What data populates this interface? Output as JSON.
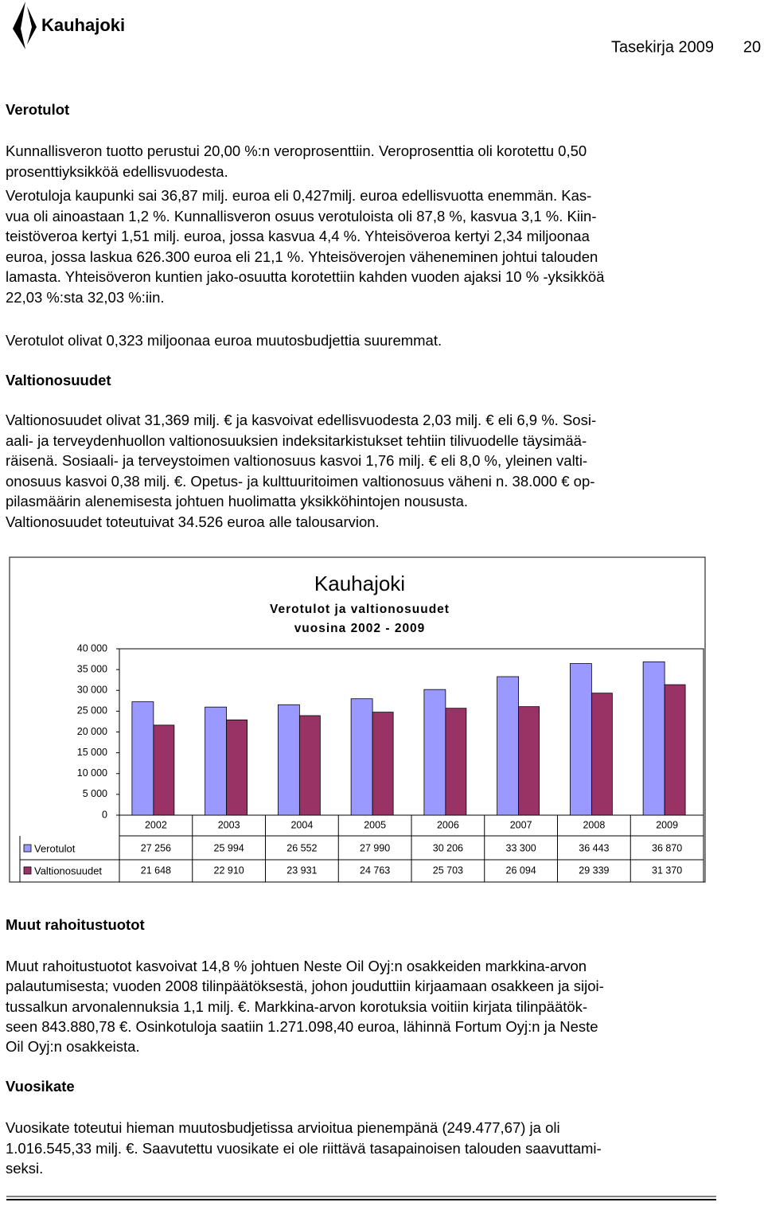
{
  "header": {
    "logo_text": "Kauhajoki",
    "title": "Tasekirja 2009",
    "page": "20"
  },
  "sections": [
    {
      "heading": "Verotulot",
      "paragraphs": [
        [
          "Kunnallisveron tuotto perustui 20,00 %:n veroprosenttiin. Veroprosenttia oli korotettu 0,50",
          "prosenttiyksikköä edellisvuodesta."
        ],
        [
          "Verotuloja kaupunki sai 36,87 milj. euroa eli 0,427milj. euroa edellisvuotta enemmän. Kas-",
          "vua oli ainoastaan 1,2 %. Kunnallisveron osuus verotuloista oli 87,8 %, kasvua 3,1 %. Kiin-",
          "teistöveroa kertyi 1,51 milj. euroa, jossa kasvua 4,4 %. Yhteisöveroa kertyi 2,34 miljoonaa",
          "euroa, jossa laskua 626.300 euroa eli 21,1 %. Yhteisöverojen väheneminen johtui talouden",
          "lamasta. Yhteisöveron kuntien jako-osuutta korotettiin kahden vuoden ajaksi 10 % -yksikköä",
          "22,03 %:sta 32,03 %:iin."
        ],
        [
          "Verotulot olivat 0,323 miljoonaa euroa muutosbudjettia suuremmat."
        ]
      ]
    },
    {
      "heading": "Valtionosuudet",
      "paragraphs": [
        [
          "Valtionosuudet olivat 31,369 milj. € ja kasvoivat edellisvuodesta 2,03 milj. € eli 6,9 %. Sosi-",
          "aali- ja terveydenhuollon valtionosuuksien indeksitarkistukset tehtiin tilivuodelle täysimää-",
          "räisenä. Sosiaali- ja terveystoimen valtionosuus kasvoi 1,76 milj. € eli 8,0 %, yleinen valti-",
          "onosuus kasvoi 0,38 milj. €. Opetus- ja kulttuuritoimen valtionosuus väheni n. 38.000 € op-",
          "pilasmäärin alenemisesta johtuen huolimatta yksikköhintojen noususta.",
          "Valtionosuudet toteutuivat 34.526 euroa alle talousarvion."
        ]
      ]
    },
    {
      "heading": "Muut rahoitustuotot",
      "paragraphs": [
        [
          "Muut rahoitustuotot kasvoivat 14,8 % johtuen Neste Oil Oyj:n osakkeiden markkina-arvon",
          "palautumisesta; vuoden 2008 tilinpäätöksestä, johon jouduttiin kirjaamaan osakkeen ja sijoi-",
          "tussalkun arvonalennuksia 1,1 milj. €. Markkina-arvon korotuksia voitiin kirjata tilinpäätök-",
          "seen 843.880,78 €. Osinkotuloja saatiin 1.271.098,40 euroa, lähinnä Fortum Oyj:n ja Neste",
          "Oil Oyj:n osakkeista."
        ]
      ]
    },
    {
      "heading": "Vuosikate",
      "paragraphs": [
        [
          "Vuosikate toteutui hieman muutosbudjetissa arvioitua pienempänä (249.477,67) ja oli",
          "1.016.545,33 milj. €. Saavutettu vuosikate ei ole riittävä tasapainoisen talouden saavuttami-",
          "seksi."
        ]
      ]
    }
  ],
  "chart_data": {
    "type": "bar",
    "title": "Kauhajoki",
    "subtitle": [
      "Verotulot ja valtionosuudet",
      "vuosina 2002 - 2009"
    ],
    "categories": [
      "2002",
      "2003",
      "2004",
      "2005",
      "2006",
      "2007",
      "2008",
      "2009"
    ],
    "series": [
      {
        "name": "Verotulot",
        "color": "#9999ff",
        "values": [
          27256,
          25994,
          26552,
          27990,
          30206,
          33300,
          36443,
          36870
        ],
        "value_labels": [
          "27 256",
          "25 994",
          "26 552",
          "27 990",
          "30 206",
          "33 300",
          "36 443",
          "36 870"
        ]
      },
      {
        "name": "Valtionosuudet",
        "color": "#993366",
        "values": [
          21648,
          22910,
          23931,
          24763,
          25703,
          26094,
          29339,
          31370
        ],
        "value_labels": [
          "21 648",
          "22 910",
          "23 931",
          "24 763",
          "25 703",
          "26 094",
          "29 339",
          "31 370"
        ]
      }
    ],
    "ylim": [
      0,
      40000
    ],
    "yticks": [
      0,
      {
        "value": 5000,
        "label": "5 000"
      },
      {
        "value": 10000,
        "label": "10 000"
      },
      {
        "value": 15000,
        "label": "15 000"
      },
      {
        "value": 20000,
        "label": "20 000"
      },
      {
        "value": 25000,
        "label": "25 000"
      },
      {
        "value": 30000,
        "label": "30 000"
      },
      {
        "value": 35000,
        "label": "35 000"
      },
      {
        "value": 40000,
        "label": "40 000"
      }
    ],
    "grid": false
  }
}
